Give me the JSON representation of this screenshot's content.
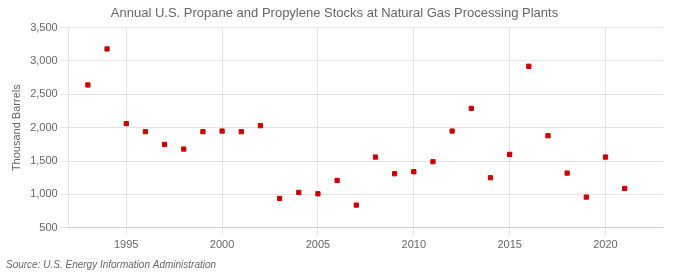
{
  "chart_data": {
    "type": "scatter",
    "title": "Annual U.S. Propane and Propylene Stocks at Natural Gas Processing Plants",
    "y_label": "Thousand Barrels",
    "annotations": [
      "Source: U.S. Energy Information Administration"
    ],
    "x": [
      1993,
      1994,
      1995,
      1996,
      1997,
      1998,
      1999,
      2000,
      2001,
      2002,
      2003,
      2004,
      2005,
      2006,
      2007,
      2008,
      2009,
      2010,
      2011,
      2012,
      2013,
      2014,
      2015,
      2016,
      2017,
      2018,
      2019,
      2020,
      2021
    ],
    "values": [
      2640,
      3180,
      2060,
      1940,
      1750,
      1680,
      1940,
      1950,
      1940,
      2030,
      940,
      1030,
      1010,
      1210,
      840,
      1560,
      1310,
      1340,
      1490,
      1950,
      2290,
      1250,
      1600,
      2920,
      1880,
      1320,
      960,
      1560,
      1090
    ],
    "color": "#cc0000",
    "marker": "square",
    "xlim": [
      1992,
      2023
    ],
    "xticks": [
      1995,
      2000,
      2005,
      2010,
      2015,
      2020
    ],
    "ylim": [
      500,
      3500
    ],
    "yticks": [
      500,
      {
        "value": 1000,
        "label": "1,000"
      },
      {
        "value": 1500,
        "label": "1,500"
      },
      {
        "value": 2000,
        "label": "2,000"
      },
      {
        "value": 2500,
        "label": "2,500"
      },
      {
        "value": 3000,
        "label": "3,000"
      },
      {
        "value": 3500,
        "label": "3,500"
      }
    ],
    "grid": true
  }
}
